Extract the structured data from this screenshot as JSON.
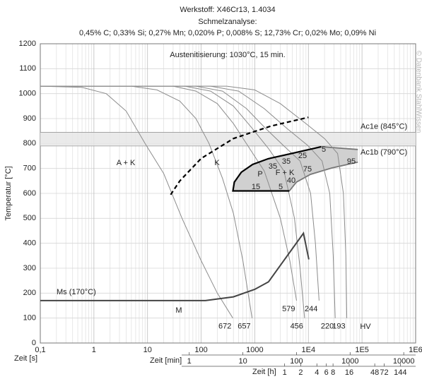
{
  "chart_data": {
    "type": "line",
    "title": "Werkstoff: X46Cr13, 1.4034",
    "subtitle": "Schmelzanalyse:",
    "composition": "0,45% C; 0,33% Si; 0,27% Mn; 0,020% P; 0,008% S; 12,73% Cr; 0,02% Mo; 0,09% Ni",
    "watermark": "© Datenbank StahlWissen",
    "y_label": "Temperatur [°C]",
    "x_label": "Zeit [s]",
    "x_label_min": "Zeit [min]",
    "x_label_h": "Zeit [h]",
    "xscale": "log",
    "xlim": [
      0.1,
      1000000
    ],
    "xticks": [
      {
        "value": 0.1,
        "label": "0,1"
      },
      1,
      10,
      100,
      1000,
      {
        "value": 10000,
        "label": "1E4"
      },
      {
        "value": 100000,
        "label": "1E5"
      },
      {
        "value": 1000000,
        "label": "1E6"
      }
    ],
    "xticks_min": [
      1,
      10,
      100,
      1000,
      10000
    ],
    "xticks_h": [
      1,
      2,
      4,
      6,
      8,
      16,
      48,
      72,
      144
    ],
    "ylim": [
      0,
      1200
    ],
    "yticks": [
      0,
      100,
      200,
      300,
      400,
      500,
      600,
      700,
      800,
      900,
      1000,
      1100,
      1200
    ],
    "grid": true,
    "ac_band": {
      "upper": 845,
      "lower": 790,
      "upper_label": "Ac1e (845°C)",
      "lower_label": "Ac1b (790°C)",
      "color": "#e6e6e6"
    },
    "series": [
      {
        "label": 672,
        "color": "#8c8c8c",
        "x": [
          0.1,
          0.6,
          1.7,
          4,
          9,
          20,
          44,
          100,
          200,
          390
        ],
        "values": [
          1030,
          1025,
          1000,
          930,
          800,
          680,
          500,
          330,
          200,
          100
        ]
      },
      {
        "label": 657,
        "color": "#8c8c8c",
        "x": [
          0.1,
          5,
          15,
          40,
          80,
          140,
          250,
          400,
          600,
          750,
          890
        ],
        "values": [
          1030,
          1030,
          1015,
          970,
          900,
          800,
          660,
          520,
          330,
          200,
          100
        ]
      },
      {
        "label": 579,
        "color": "#8c8c8c",
        "x": [
          0.1,
          30,
          80,
          200,
          400,
          800,
          1500,
          3000,
          4500,
          6000
        ],
        "values": [
          1030,
          1030,
          1010,
          960,
          880,
          780,
          690,
          500,
          330,
          170
        ]
      },
      {
        "label": 456,
        "color": "#8c8c8c",
        "x": [
          0.1,
          50,
          150,
          400,
          900,
          1800,
          3500,
          5500,
          7000,
          8500
        ],
        "values": [
          1030,
          1030,
          1010,
          950,
          860,
          780,
          690,
          500,
          300,
          100
        ]
      },
      {
        "label": 244,
        "color": "#8c8c8c",
        "x": [
          0.1,
          80,
          250,
          700,
          1600,
          3500,
          7000,
          11000,
          13500,
          15800
        ],
        "values": [
          1030,
          1030,
          1010,
          940,
          860,
          790,
          730,
          600,
          400,
          170
        ]
      },
      {
        "label": 220,
        "color": "#8c8c8c",
        "x": [
          0.1,
          150,
          500,
          1500,
          4000,
          10000,
          18000,
          25000,
          29000,
          31600
        ],
        "values": [
          1030,
          1030,
          1010,
          940,
          860,
          790,
          730,
          600,
          350,
          100
        ]
      },
      {
        "label": 193,
        "color": "#8c8c8c",
        "x": [
          0.1,
          300,
          1000,
          3000,
          9000,
          20000,
          35000,
          45000,
          50000,
          52000
        ],
        "values": [
          1030,
          1030,
          1015,
          960,
          880,
          820,
          760,
          600,
          350,
          100
        ]
      }
    ],
    "ms_line": {
      "label": "Ms (170°C)",
      "color": "#444444",
      "x": [
        0.1,
        120,
        400,
        1000,
        1800,
        8100,
        10200
      ],
      "values": [
        170,
        170,
        185,
        215,
        245,
        440,
        335
      ]
    },
    "dashed_line": {
      "color": "#000000",
      "x": [
        27,
        40,
        100,
        400,
        2000,
        10000
      ],
      "values": [
        595,
        650,
        740,
        820,
        870,
        905
      ]
    },
    "region": {
      "color": "#d0d0d0",
      "x": [
        391,
        415,
        562,
        912,
        1780,
        4420,
        17300,
        83400,
        83400,
        27200,
        10900,
        5970,
        4420
      ],
      "values": [
        610,
        645,
        685,
        716,
        739,
        758,
        787,
        776,
        725,
        702,
        676,
        645,
        610
      ]
    },
    "start_line": {
      "color": "#000000",
      "x": [
        4420,
        391,
        415,
        562,
        912,
        1780,
        4420,
        17300
      ],
      "values": [
        610,
        610,
        645,
        685,
        716,
        739,
        758,
        787
      ]
    },
    "finish_lines": [
      {
        "color": "#777777",
        "x": [
          4420,
          5970,
          10900,
          27200,
          83400
        ],
        "values": [
          610,
          645,
          676,
          702,
          725
        ]
      },
      {
        "color": "#777777",
        "x": [
          17300,
          83400
        ],
        "values": [
          787,
          776
        ]
      }
    ],
    "annotations": [
      "Austenitisierung: 1030°C, 15 min.",
      "A + K",
      "K",
      "M",
      "P",
      "F + K",
      "15",
      "35",
      "35",
      "25",
      "5",
      "75",
      "95",
      "40",
      "5",
      "HV"
    ]
  }
}
